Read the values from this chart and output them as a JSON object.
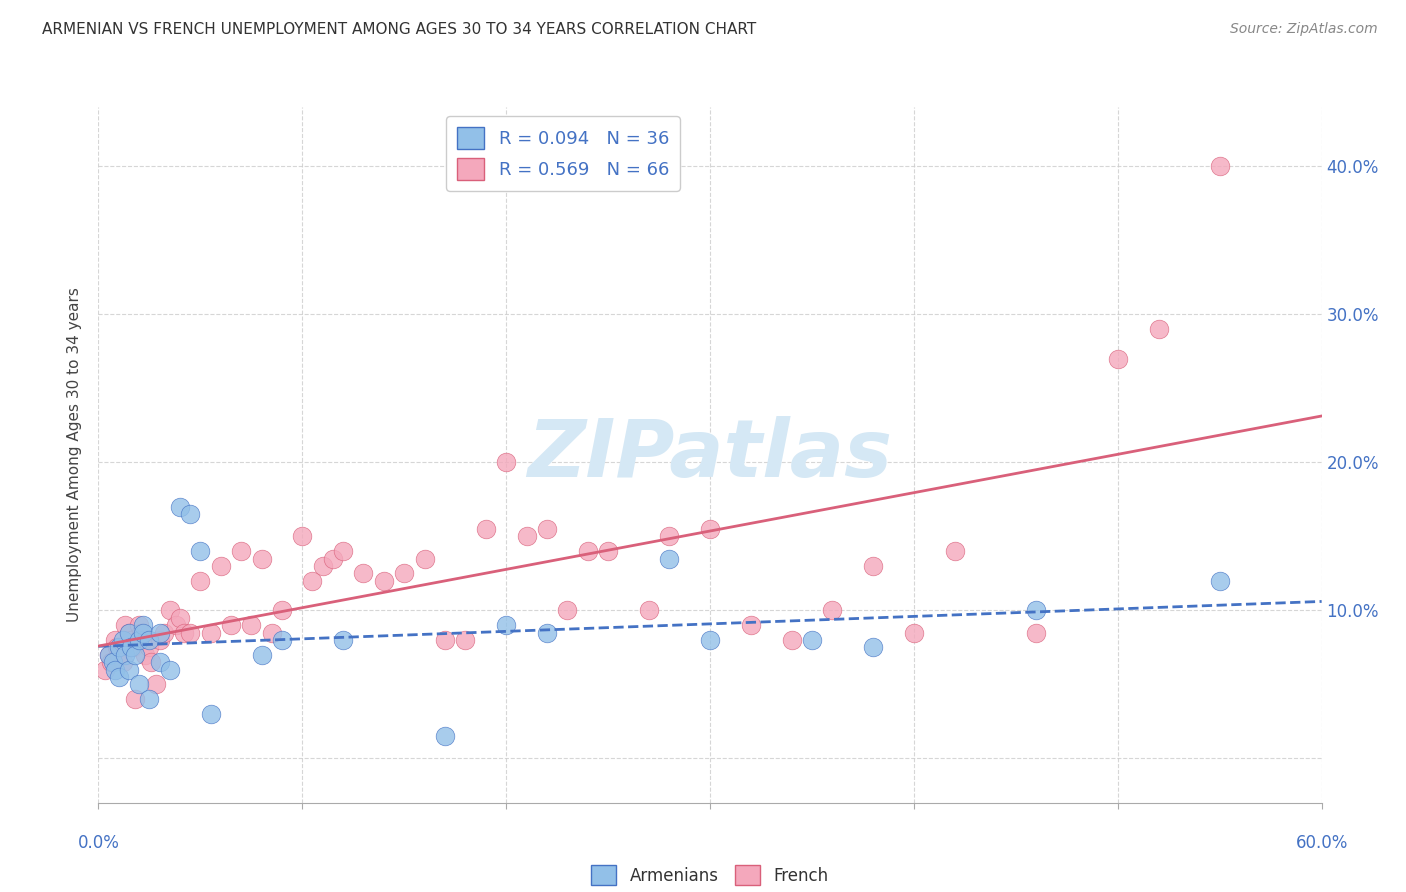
{
  "title": "ARMENIAN VS FRENCH UNEMPLOYMENT AMONG AGES 30 TO 34 YEARS CORRELATION CHART",
  "source": "Source: ZipAtlas.com",
  "ylabel": "Unemployment Among Ages 30 to 34 years",
  "xlim": [
    0.0,
    0.6
  ],
  "ylim": [
    -0.03,
    0.44
  ],
  "yticks": [
    0.0,
    0.1,
    0.2,
    0.3,
    0.4
  ],
  "ytick_labels": [
    "",
    "10.0%",
    "20.0%",
    "30.0%",
    "40.0%"
  ],
  "xticks": [
    0.0,
    0.1,
    0.2,
    0.3,
    0.4,
    0.5,
    0.6
  ],
  "legend_armenian": "R = 0.094   N = 36",
  "legend_french": "R = 0.569   N = 66",
  "color_armenian": "#92C0E8",
  "color_french": "#F4A8BC",
  "color_line_armenian": "#4472C4",
  "color_line_french": "#D9607A",
  "watermark": "ZIPatlas",
  "watermark_color": "#D5E8F5",
  "armenian_x": [
    0.005,
    0.007,
    0.008,
    0.01,
    0.01,
    0.012,
    0.013,
    0.015,
    0.015,
    0.016,
    0.018,
    0.02,
    0.02,
    0.022,
    0.022,
    0.025,
    0.025,
    0.03,
    0.03,
    0.035,
    0.04,
    0.045,
    0.05,
    0.055,
    0.08,
    0.09,
    0.12,
    0.17,
    0.2,
    0.22,
    0.28,
    0.3,
    0.35,
    0.38,
    0.46,
    0.55
  ],
  "armenian_y": [
    0.07,
    0.065,
    0.06,
    0.075,
    0.055,
    0.08,
    0.07,
    0.085,
    0.06,
    0.075,
    0.07,
    0.08,
    0.05,
    0.09,
    0.085,
    0.08,
    0.04,
    0.085,
    0.065,
    0.06,
    0.17,
    0.165,
    0.14,
    0.03,
    0.07,
    0.08,
    0.08,
    0.015,
    0.09,
    0.085,
    0.135,
    0.08,
    0.08,
    0.075,
    0.1,
    0.12
  ],
  "french_x": [
    0.003,
    0.005,
    0.006,
    0.008,
    0.009,
    0.01,
    0.012,
    0.013,
    0.015,
    0.016,
    0.017,
    0.018,
    0.02,
    0.021,
    0.022,
    0.023,
    0.025,
    0.026,
    0.028,
    0.03,
    0.032,
    0.035,
    0.038,
    0.04,
    0.042,
    0.045,
    0.05,
    0.055,
    0.06,
    0.065,
    0.07,
    0.075,
    0.08,
    0.085,
    0.09,
    0.1,
    0.105,
    0.11,
    0.115,
    0.12,
    0.13,
    0.14,
    0.15,
    0.16,
    0.17,
    0.18,
    0.19,
    0.2,
    0.21,
    0.22,
    0.23,
    0.24,
    0.25,
    0.27,
    0.28,
    0.3,
    0.32,
    0.34,
    0.36,
    0.38,
    0.4,
    0.42,
    0.46,
    0.5,
    0.52,
    0.55
  ],
  "french_y": [
    0.06,
    0.07,
    0.065,
    0.08,
    0.075,
    0.07,
    0.065,
    0.09,
    0.085,
    0.08,
    0.075,
    0.04,
    0.09,
    0.085,
    0.08,
    0.07,
    0.075,
    0.065,
    0.05,
    0.08,
    0.085,
    0.1,
    0.09,
    0.095,
    0.085,
    0.085,
    0.12,
    0.085,
    0.13,
    0.09,
    0.14,
    0.09,
    0.135,
    0.085,
    0.1,
    0.15,
    0.12,
    0.13,
    0.135,
    0.14,
    0.125,
    0.12,
    0.125,
    0.135,
    0.08,
    0.08,
    0.155,
    0.2,
    0.15,
    0.155,
    0.1,
    0.14,
    0.14,
    0.1,
    0.15,
    0.155,
    0.09,
    0.08,
    0.1,
    0.13,
    0.085,
    0.14,
    0.085,
    0.27,
    0.29,
    0.4
  ]
}
